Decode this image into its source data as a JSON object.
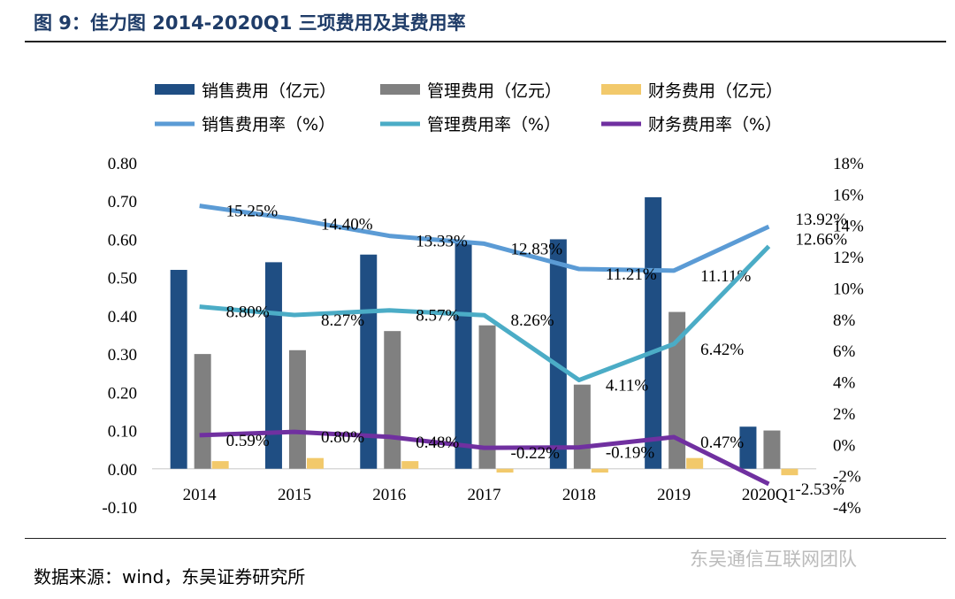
{
  "title": "图 9：佳力图 2014-2020Q1 三项费用及其费用率",
  "source": "数据来源：wind，东吴证券研究所",
  "watermark": "东吴通信互联网团队",
  "chart_data": {
    "type": "bar+line",
    "categories": [
      "2014",
      "2015",
      "2016",
      "2017",
      "2018",
      "2019",
      "2020Q1"
    ],
    "left_axis": {
      "ylim": [
        -0.1,
        0.8
      ],
      "ticks": [
        "0.80",
        "0.70",
        "0.60",
        "0.50",
        "0.40",
        "0.30",
        "0.20",
        "0.10",
        "0.00",
        "-0.10"
      ]
    },
    "right_axis": {
      "ylim": [
        -4,
        18
      ],
      "ticks": [
        "18%",
        "16%",
        "14%",
        "12%",
        "10%",
        "8%",
        "6%",
        "4%",
        "2%",
        "0%",
        "-2%",
        "-4%"
      ]
    },
    "legend": "top",
    "grid": false,
    "bars": [
      {
        "name": "销售费用（亿元）",
        "color": "#1f4e83",
        "values": [
          0.52,
          0.54,
          0.56,
          0.59,
          0.6,
          0.71,
          0.11
        ]
      },
      {
        "name": "管理费用（亿元）",
        "color": "#808080",
        "values": [
          0.3,
          0.31,
          0.36,
          0.375,
          0.22,
          0.41,
          0.1
        ]
      },
      {
        "name": "财务费用（亿元）",
        "color": "#f2c96b",
        "values": [
          0.02,
          0.028,
          0.02,
          -0.01,
          -0.01,
          0.028,
          -0.017
        ]
      }
    ],
    "lines": [
      {
        "name": "销售费用率（%）",
        "color": "#5b9bd5",
        "values": [
          15.25,
          14.4,
          13.33,
          12.83,
          11.21,
          11.11,
          13.92
        ],
        "labels": [
          "15.25%",
          "14.40%",
          "13.33%",
          "12.83%",
          "11.21%",
          "11.11%",
          "13.92%"
        ]
      },
      {
        "name": "管理费用率（%）",
        "color": "#4bacc6",
        "values": [
          8.8,
          8.27,
          8.57,
          8.26,
          4.11,
          6.42,
          12.66
        ],
        "labels": [
          "8.80%",
          "8.27%",
          "8.57%",
          "8.26%",
          "4.11%",
          "6.42%",
          "12.66%"
        ]
      },
      {
        "name": "财务费用率（%）",
        "color": "#7030a0",
        "values": [
          0.59,
          0.8,
          0.48,
          -0.22,
          -0.19,
          0.47,
          -2.53
        ],
        "labels": [
          "0.59%",
          "0.80%",
          "0.48%",
          "-0.22%",
          "-0.19%",
          "0.47%",
          "-2.53%"
        ]
      }
    ]
  }
}
